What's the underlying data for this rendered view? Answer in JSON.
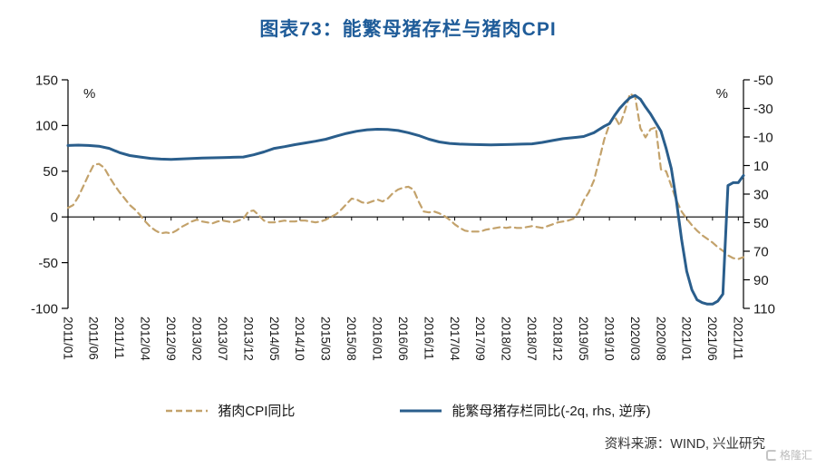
{
  "title": "图表73：能繁母猪存栏与猪肉CPI",
  "source": "资料来源：WIND, 兴业研究",
  "watermark": "格隆汇",
  "colors": {
    "title": "#1f5c99",
    "cpi_line": "#c3a26b",
    "sow_line": "#2a5e8c",
    "axis": "#000000"
  },
  "chart_data": {
    "type": "line",
    "title": "图表73：能繁母猪存栏与猪肉CPI",
    "legend_position": "bottom",
    "x_index_range": [
      0,
      131
    ],
    "x_tick_labels": [
      "2011/01",
      "2011/06",
      "2011/11",
      "2012/04",
      "2012/09",
      "2013/02",
      "2013/07",
      "2013/12",
      "2014/05",
      "2014/10",
      "2015/03",
      "2015/08",
      "2016/01",
      "2016/06",
      "2016/11",
      "2017/04",
      "2017/09",
      "2018/02",
      "2018/07",
      "2018/12",
      "2019/05",
      "2019/10",
      "2020/03",
      "2020/08",
      "2021/01",
      "2021/06",
      "2021/11"
    ],
    "x_tick_step_months": 5,
    "left_axis": {
      "unit": "%",
      "ticks": [
        150,
        100,
        50,
        0,
        -50,
        -100
      ],
      "range": [
        -100,
        150
      ],
      "reversed": false
    },
    "right_axis": {
      "unit": "%",
      "ticks": [
        -50,
        -30,
        -10,
        10,
        30,
        50,
        70,
        90,
        110
      ],
      "range": [
        -50,
        110
      ],
      "reversed": true
    },
    "series": [
      {
        "name": "猪肉CPI同比",
        "axis": "left",
        "style": "dashed",
        "color": "#c3a26b",
        "points": [
          [
            0,
            10
          ],
          [
            1,
            13
          ],
          [
            2,
            22
          ],
          [
            3,
            34
          ],
          [
            4,
            46
          ],
          [
            5,
            57
          ],
          [
            6,
            58
          ],
          [
            7,
            54
          ],
          [
            8,
            44
          ],
          [
            9,
            35
          ],
          [
            10,
            27
          ],
          [
            11,
            20
          ],
          [
            12,
            13
          ],
          [
            13,
            8
          ],
          [
            14,
            2
          ],
          [
            15,
            -5
          ],
          [
            16,
            -11
          ],
          [
            17,
            -15
          ],
          [
            18,
            -18
          ],
          [
            19,
            -17
          ],
          [
            20,
            -18
          ],
          [
            21,
            -15
          ],
          [
            22,
            -11
          ],
          [
            23,
            -8
          ],
          [
            24,
            -5
          ],
          [
            25,
            -3
          ],
          [
            26,
            -5
          ],
          [
            27,
            -6
          ],
          [
            28,
            -7
          ],
          [
            29,
            -5
          ],
          [
            30,
            -4
          ],
          [
            31,
            -5
          ],
          [
            32,
            -6
          ],
          [
            33,
            -4
          ],
          [
            34,
            -2
          ],
          [
            35,
            6
          ],
          [
            36,
            7
          ],
          [
            37,
            2
          ],
          [
            38,
            -4
          ],
          [
            39,
            -6
          ],
          [
            40,
            -6
          ],
          [
            41,
            -5
          ],
          [
            42,
            -4
          ],
          [
            43,
            -5
          ],
          [
            44,
            -5
          ],
          [
            45,
            -4
          ],
          [
            46,
            -4
          ],
          [
            47,
            -5
          ],
          [
            48,
            -6
          ],
          [
            49,
            -5
          ],
          [
            50,
            -3
          ],
          [
            51,
            0
          ],
          [
            52,
            3
          ],
          [
            53,
            8
          ],
          [
            54,
            14
          ],
          [
            55,
            20
          ],
          [
            56,
            19
          ],
          [
            57,
            16
          ],
          [
            58,
            15
          ],
          [
            59,
            17
          ],
          [
            60,
            19
          ],
          [
            61,
            17
          ],
          [
            62,
            20
          ],
          [
            63,
            26
          ],
          [
            64,
            30
          ],
          [
            65,
            32
          ],
          [
            66,
            33
          ],
          [
            67,
            30
          ],
          [
            68,
            17
          ],
          [
            69,
            6
          ],
          [
            70,
            5
          ],
          [
            71,
            6
          ],
          [
            72,
            4
          ],
          [
            73,
            1
          ],
          [
            74,
            -3
          ],
          [
            75,
            -8
          ],
          [
            76,
            -12
          ],
          [
            77,
            -15
          ],
          [
            78,
            -16
          ],
          [
            79,
            -16
          ],
          [
            80,
            -16
          ],
          [
            81,
            -14
          ],
          [
            82,
            -13
          ],
          [
            83,
            -12
          ],
          [
            84,
            -11
          ],
          [
            85,
            -12
          ],
          [
            86,
            -11
          ],
          [
            87,
            -12
          ],
          [
            88,
            -12
          ],
          [
            89,
            -11
          ],
          [
            90,
            -10
          ],
          [
            91,
            -11
          ],
          [
            92,
            -12
          ],
          [
            93,
            -10
          ],
          [
            94,
            -8
          ],
          [
            95,
            -6
          ],
          [
            96,
            -5
          ],
          [
            97,
            -4
          ],
          [
            98,
            -2
          ],
          [
            99,
            5
          ],
          [
            100,
            18
          ],
          [
            101,
            27
          ],
          [
            102,
            40
          ],
          [
            103,
            62
          ],
          [
            104,
            85
          ],
          [
            105,
            101
          ],
          [
            106,
            110
          ],
          [
            107,
            100
          ],
          [
            108,
            116
          ],
          [
            109,
            135
          ],
          [
            110,
            131
          ],
          [
            111,
            97
          ],
          [
            112,
            87
          ],
          [
            113,
            96
          ],
          [
            114,
            98
          ],
          [
            115,
            52
          ],
          [
            116,
            50
          ],
          [
            117,
            34
          ],
          [
            118,
            18
          ],
          [
            119,
            6
          ],
          [
            120,
            -2
          ],
          [
            121,
            -9
          ],
          [
            122,
            -15
          ],
          [
            123,
            -20
          ],
          [
            124,
            -24
          ],
          [
            125,
            -28
          ],
          [
            126,
            -33
          ],
          [
            127,
            -37
          ],
          [
            128,
            -42
          ],
          [
            129,
            -45
          ],
          [
            130,
            -46
          ],
          [
            131,
            -44
          ]
        ]
      },
      {
        "name": "能繁母猪存栏同比(-2q, rhs, 逆序)",
        "axis": "right",
        "style": "solid",
        "color": "#2a5e8c",
        "points": [
          [
            0,
            -4
          ],
          [
            2,
            -4.3
          ],
          [
            4,
            -4
          ],
          [
            6,
            -3.5
          ],
          [
            8,
            -2
          ],
          [
            10,
            1
          ],
          [
            12,
            3
          ],
          [
            14,
            4
          ],
          [
            16,
            5
          ],
          [
            18,
            5.5
          ],
          [
            20,
            5.7
          ],
          [
            22,
            5.4
          ],
          [
            24,
            5.1
          ],
          [
            26,
            4.8
          ],
          [
            28,
            4.6
          ],
          [
            30,
            4.4
          ],
          [
            32,
            4.2
          ],
          [
            34,
            4
          ],
          [
            36,
            2.5
          ],
          [
            38,
            0.5
          ],
          [
            40,
            -2
          ],
          [
            42,
            -3.2
          ],
          [
            44,
            -4.6
          ],
          [
            46,
            -5.8
          ],
          [
            48,
            -7
          ],
          [
            50,
            -8.4
          ],
          [
            52,
            -10.5
          ],
          [
            54,
            -12.5
          ],
          [
            56,
            -14
          ],
          [
            58,
            -15
          ],
          [
            60,
            -15.4
          ],
          [
            62,
            -15.2
          ],
          [
            64,
            -14.5
          ],
          [
            66,
            -13
          ],
          [
            68,
            -11
          ],
          [
            70,
            -8.4
          ],
          [
            72,
            -6.5
          ],
          [
            74,
            -5.5
          ],
          [
            76,
            -5
          ],
          [
            78,
            -4.8
          ],
          [
            80,
            -4.6
          ],
          [
            82,
            -4.5
          ],
          [
            84,
            -4.6
          ],
          [
            86,
            -4.8
          ],
          [
            88,
            -5
          ],
          [
            90,
            -5.2
          ],
          [
            92,
            -6.2
          ],
          [
            94,
            -7.5
          ],
          [
            96,
            -8.8
          ],
          [
            98,
            -9.5
          ],
          [
            100,
            -10.3
          ],
          [
            102,
            -13
          ],
          [
            104,
            -17.5
          ],
          [
            105,
            -19.3
          ],
          [
            106,
            -25
          ],
          [
            107,
            -30
          ],
          [
            108,
            -34
          ],
          [
            109,
            -37.5
          ],
          [
            110,
            -39
          ],
          [
            111,
            -36.5
          ],
          [
            112,
            -31
          ],
          [
            113,
            -26
          ],
          [
            114,
            -20
          ],
          [
            115,
            -14
          ],
          [
            116,
            -2
          ],
          [
            117,
            12
          ],
          [
            118,
            35
          ],
          [
            119,
            62
          ],
          [
            120,
            84
          ],
          [
            121,
            97
          ],
          [
            122,
            104
          ],
          [
            123,
            106
          ],
          [
            124,
            107
          ],
          [
            125,
            107
          ],
          [
            126,
            105
          ],
          [
            127,
            100
          ],
          [
            128,
            24
          ],
          [
            129,
            22
          ],
          [
            130,
            22
          ],
          [
            131,
            17
          ]
        ]
      }
    ]
  }
}
